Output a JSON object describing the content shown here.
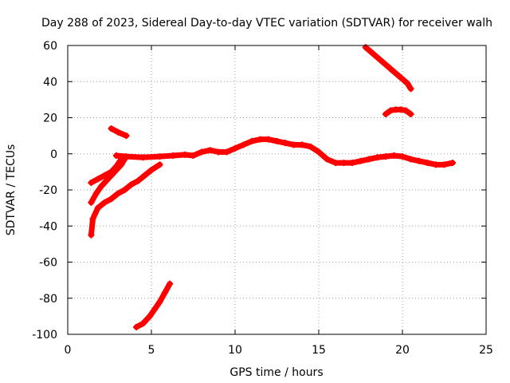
{
  "chart_data": {
    "type": "scatter",
    "title": "Day 288 of 2023, Sidereal Day-to-day VTEC variation (SDTVAR) for receiver walh",
    "xlabel": "GPS time / hours",
    "ylabel": "SDTVAR / TECUs",
    "xlim": [
      0,
      25
    ],
    "ylim": [
      -100,
      60
    ],
    "xticks": [
      0,
      5,
      10,
      15,
      20,
      25
    ],
    "yticks": [
      -100,
      -80,
      -60,
      -40,
      -20,
      0,
      20,
      40,
      60
    ],
    "grid": true,
    "marker": "plus",
    "color": "#ff0000",
    "series": [
      {
        "name": "arc-main",
        "x": [
          2.9,
          3.5,
          4.5,
          5.5,
          6.3,
          7.0,
          7.5,
          8.0,
          8.5,
          9.0,
          9.5,
          10.0,
          10.5,
          11.0,
          11.5,
          12.0,
          12.5,
          13.0,
          13.5,
          14.0,
          14.5,
          15.0,
          15.5,
          16.0,
          16.5,
          17.0,
          17.5,
          18.0,
          18.5,
          19.0,
          19.5,
          20.0,
          20.5,
          21.0,
          21.5,
          22.0,
          22.5,
          23.0
        ],
        "y": [
          -1,
          -1.5,
          -2,
          -1.5,
          -1,
          -0.5,
          -1,
          1,
          2,
          1,
          1,
          3,
          5,
          7,
          8,
          8,
          7,
          6,
          5,
          5,
          4,
          1,
          -3,
          -5,
          -5,
          -5,
          -4,
          -3,
          -2,
          -1.5,
          -1,
          -1.5,
          -3,
          -4,
          -5,
          -6,
          -6,
          -5
        ]
      },
      {
        "name": "arc-a",
        "x": [
          1.4,
          1.8,
          2.2,
          2.6,
          2.9,
          3.2
        ],
        "y": [
          -16,
          -14,
          -12,
          -10,
          -7,
          -3
        ]
      },
      {
        "name": "arc-b",
        "x": [
          1.4,
          1.7,
          2.0,
          2.3,
          2.6,
          2.9,
          3.2,
          3.4
        ],
        "y": [
          -27,
          -22,
          -18,
          -15,
          -12,
          -9,
          -6,
          -3
        ]
      },
      {
        "name": "arc-c",
        "x": [
          1.4,
          1.5,
          1.8,
          2.2,
          2.6,
          3.0,
          3.4,
          3.8,
          4.2,
          4.6,
          5.0,
          5.5
        ],
        "y": [
          -45,
          -36,
          -30,
          -27,
          -25,
          -22,
          -20,
          -17,
          -15,
          -12,
          -9,
          -6
        ]
      },
      {
        "name": "arc-d",
        "x": [
          2.6,
          3.0,
          3.5
        ],
        "y": [
          14,
          12,
          10
        ]
      },
      {
        "name": "arc-e",
        "x": [
          4.1,
          4.5,
          4.9,
          5.2,
          5.5,
          5.8,
          6.1
        ],
        "y": [
          -96,
          -94,
          -90,
          -86,
          -82,
          -77,
          -72
        ]
      },
      {
        "name": "arc-f",
        "x": [
          17.8,
          18.3,
          18.8,
          19.3,
          19.8,
          20.3,
          20.5
        ],
        "y": [
          59,
          55,
          51,
          47,
          43,
          39,
          36
        ]
      },
      {
        "name": "arc-g",
        "x": [
          19.0,
          19.3,
          19.6,
          19.9,
          20.2,
          20.5
        ],
        "y": [
          22,
          24,
          24.5,
          24.5,
          24,
          22
        ]
      }
    ]
  }
}
